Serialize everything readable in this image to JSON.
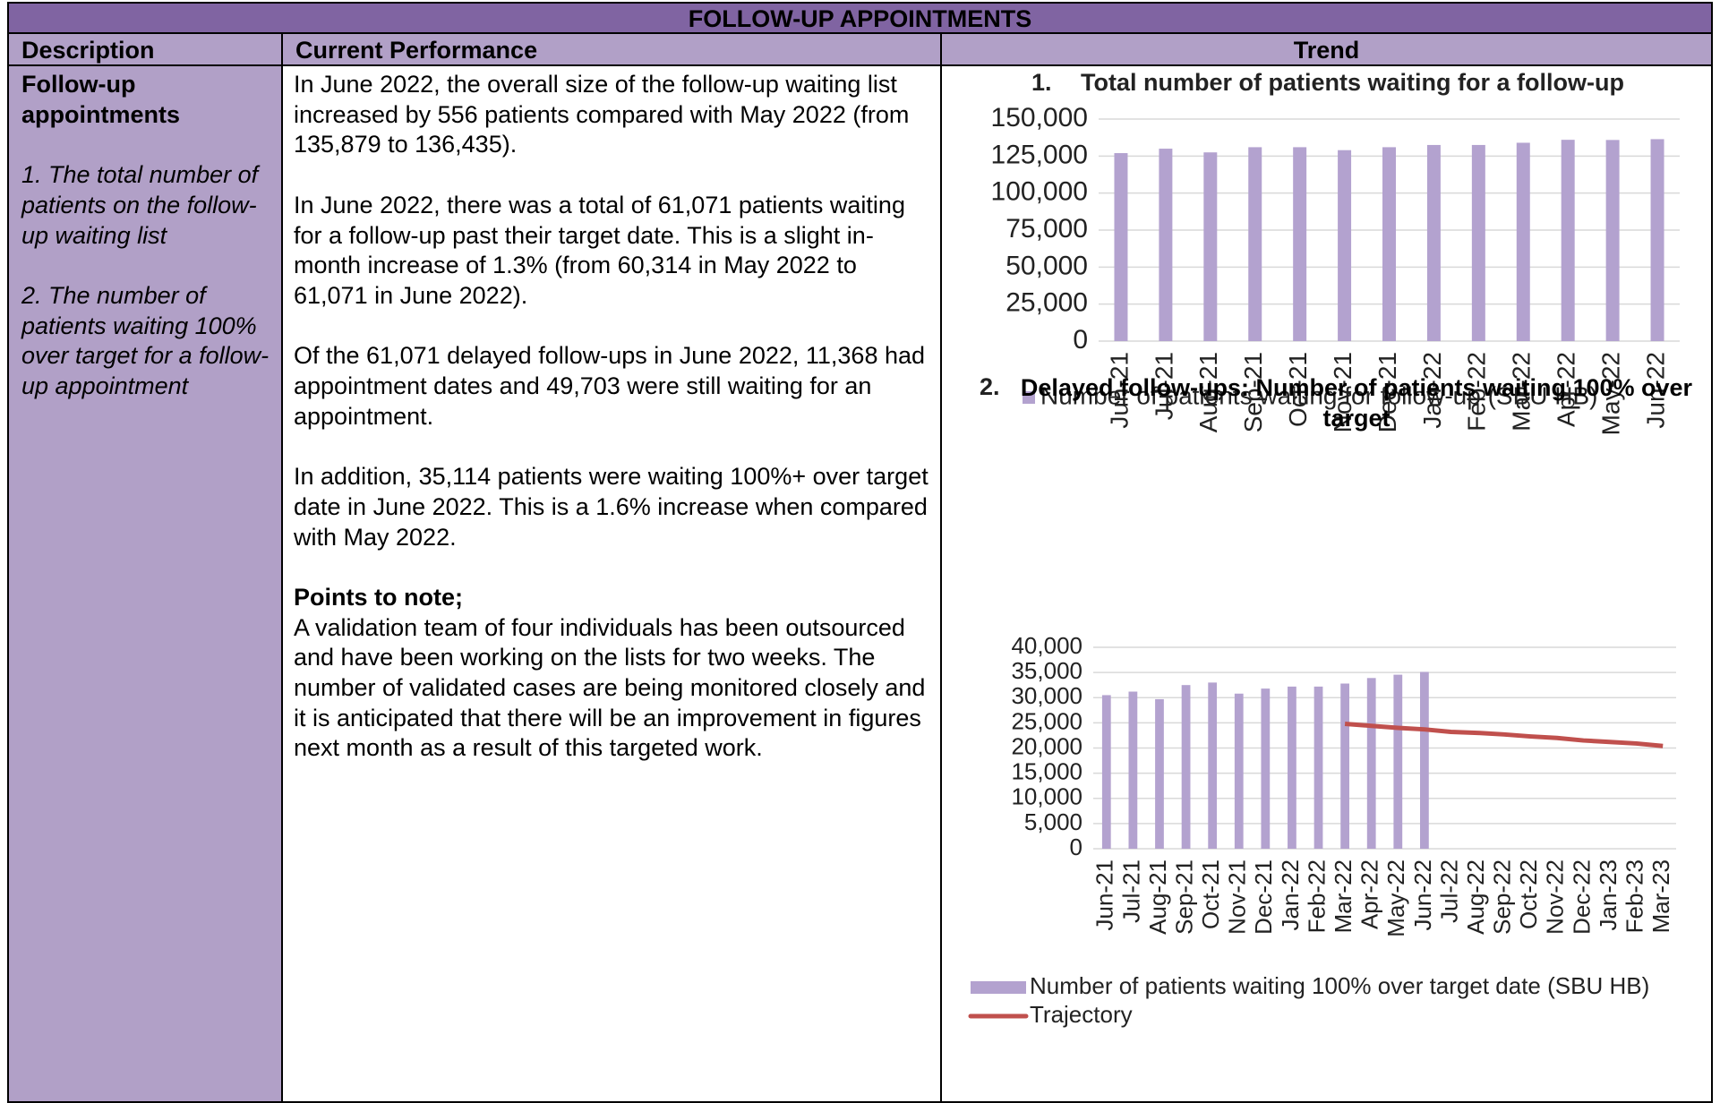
{
  "header": {
    "title": "FOLLOW-UP APPOINTMENTS",
    "columns": [
      "Description",
      "Current Performance",
      "Trend"
    ]
  },
  "description": {
    "title": "Follow-up appointments",
    "items": [
      "1. The total number of patients on the follow-up waiting list",
      "2. The number of patients waiting 100% over target for a follow-up appointment"
    ]
  },
  "performance": {
    "paragraphs": [
      "In June 2022, the overall size of the follow-up waiting list increased by 556 patients compared with May 2022 (from 135,879 to 136,435).",
      "In June 2022, there was a total of 61,071 patients waiting for a follow-up past their target date.  This is a slight in-month increase of 1.3% (from 60,314 in May 2022 to 61,071 in June 2022).",
      "Of the 61,071 delayed follow-ups in June 2022, 11,368 had appointment dates and 49,703 were still waiting for an appointment.",
      "In addition, 35,114 patients were waiting 100%+ over target date in June 2022.  This is a 1.6% increase when compared with May 2022."
    ],
    "points_heading": "Points to note;",
    "points_text": "A validation team of four individuals has been outsourced and have been working on the lists for two weeks. The number of validated cases are being monitored closely and it is anticipated that there will be an improvement in figures next month as a result of this targeted work."
  },
  "chart_data": [
    {
      "type": "bar",
      "number": "1.",
      "title": "Total number of patients waiting for a follow-up",
      "categories": [
        "Jun-21",
        "Jul-21",
        "Aug-21",
        "Sep-21",
        "Oct-21",
        "Nov-21",
        "Dec-21",
        "Jan-22",
        "Feb-22",
        "Mar-22",
        "Apr-22",
        "May-22",
        "Jun-22"
      ],
      "series": [
        {
          "name": "Number of patients waiting for follow-up (SBU HB)",
          "type": "bar",
          "color": "#b3a2cf",
          "values": [
            127000,
            130000,
            127500,
            131000,
            131000,
            129000,
            131000,
            132500,
            132500,
            134000,
            136000,
            135879,
            136435
          ]
        }
      ],
      "ylim": [
        0,
        150000
      ],
      "yticks": [
        0,
        {
          "value": 25000,
          "label": "25,000"
        },
        {
          "value": 50000,
          "label": "50,000"
        },
        {
          "value": 75000,
          "label": "75,000"
        },
        {
          "value": 100000,
          "label": "100,000"
        },
        {
          "value": 125000,
          "label": "125,000"
        },
        {
          "value": 150000,
          "label": "150,000"
        }
      ],
      "grid": true
    },
    {
      "type": "combo",
      "number": "2.",
      "title": "Delayed follow-ups: Number of patients waiting 100% over target",
      "categories": [
        "Jun-21",
        "Jul-21",
        "Aug-21",
        "Sep-21",
        "Oct-21",
        "Nov-21",
        "Dec-21",
        "Jan-22",
        "Feb-22",
        "Mar-22",
        "Apr-22",
        "May-22",
        "Jun-22",
        "Jul-22",
        "Aug-22",
        "Sep-22",
        "Oct-22",
        "Nov-22",
        "Dec-22",
        "Jan-23",
        "Feb-23",
        "Mar-23"
      ],
      "series": [
        {
          "name": "Number of patients waiting 100% over target date (SBU HB)",
          "type": "bar",
          "color": "#b3a2cf",
          "values": [
            30500,
            31200,
            29700,
            32500,
            33000,
            30800,
            31800,
            32200,
            32200,
            32800,
            33900,
            34560,
            35114,
            null,
            null,
            null,
            null,
            null,
            null,
            null,
            null,
            null
          ]
        },
        {
          "name": "Trajectory",
          "type": "line",
          "color": "#c0504d",
          "values": [
            null,
            null,
            null,
            null,
            null,
            null,
            null,
            null,
            null,
            24800,
            24400,
            24000,
            23700,
            23200,
            23000,
            22700,
            22300,
            22000,
            21500,
            21200,
            20900,
            20400
          ]
        }
      ],
      "ylim": [
        0,
        40000
      ],
      "yticks": [
        0,
        {
          "value": 5000,
          "label": "5,000"
        },
        {
          "value": 10000,
          "label": "10,000"
        },
        {
          "value": 15000,
          "label": "15,000"
        },
        {
          "value": 20000,
          "label": "20,000"
        },
        {
          "value": 25000,
          "label": "25,000"
        },
        {
          "value": 30000,
          "label": "30,000"
        },
        {
          "value": 35000,
          "label": "35,000"
        },
        {
          "value": 40000,
          "label": "40,000"
        }
      ],
      "grid": true
    }
  ]
}
